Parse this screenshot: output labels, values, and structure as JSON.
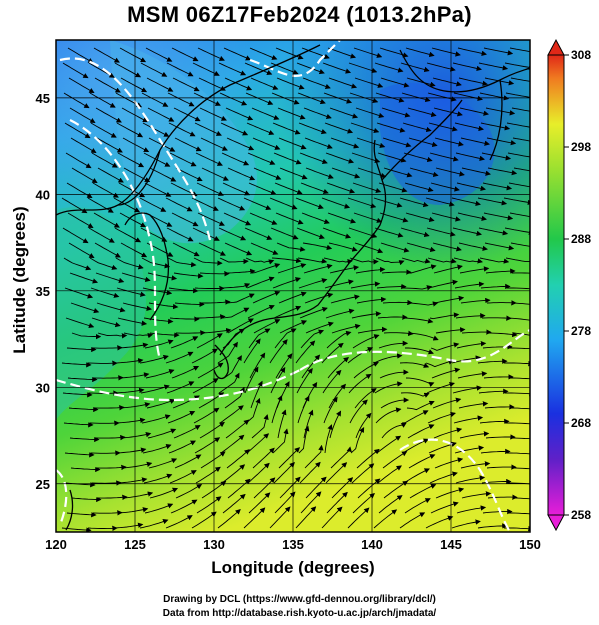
{
  "title": "MSM 06Z17Feb2024 (1013.2hPa)",
  "x_axis": {
    "label": "Longitude (degrees)",
    "ticks": [
      "120",
      "125",
      "130",
      "135",
      "140",
      "145",
      "150"
    ]
  },
  "y_axis": {
    "label": "Latitude  (degrees)",
    "ticks": [
      "25",
      "30",
      "35",
      "40",
      "45"
    ]
  },
  "colorbar": {
    "ticks": [
      "258",
      "268",
      "278",
      "288",
      "298",
      "308"
    ]
  },
  "credits": {
    "line1": "Drawing by DCL (https://www.gfd-dennou.org/library/dcl/)",
    "line2": "Data from http://database.rish.kyoto-u.ac.jp/arch/jmadata/"
  },
  "colors": {
    "cold": "#1450e0",
    "mid": "#22d07a",
    "warm": "#e8ee2a",
    "contour": "#ffffff",
    "land": "#000000"
  },
  "chart_data": {
    "type": "heatmap",
    "title": "MSM 06Z17Feb2024 (1013.2hPa)",
    "xlabel": "Longitude (degrees)",
    "ylabel": "Latitude  (degrees)",
    "xlim": [
      120,
      150
    ],
    "ylim": [
      22.5,
      48
    ],
    "color_range": [
      258,
      308
    ],
    "field": "temperature with streamlines of wind"
  }
}
